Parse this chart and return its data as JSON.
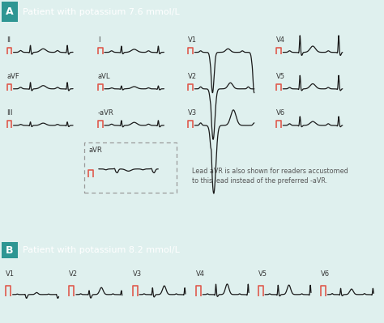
{
  "title_a": "Patient with potassium 7.6 mmol/L",
  "title_b": "Patient with potassium 8.2 mmol/L",
  "label_a": "A",
  "label_b": "B",
  "header_color": "#3aada8",
  "header_dark": "#2e9693",
  "bg_color": "#dff0ee",
  "text_color": "#333333",
  "cal_color": "#e05a4e",
  "ecg_color": "#1a1a1a",
  "note_text": "Lead aVR is also shown for readers accustomed\nto this lead instead of the preferred -aVR."
}
